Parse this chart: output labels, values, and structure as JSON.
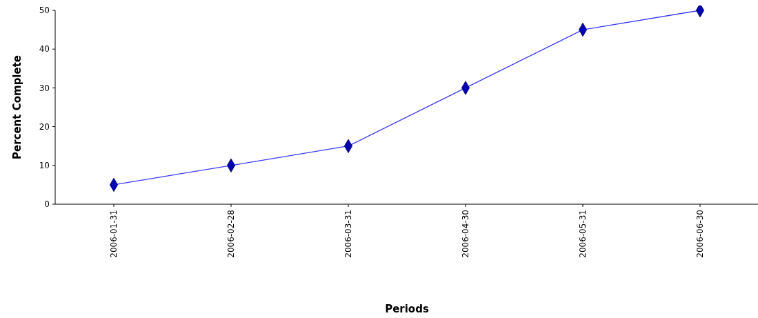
{
  "chart_data": {
    "type": "line",
    "xlabel": "Periods",
    "ylabel": "Percent Complete",
    "categories": [
      "2006-01-31",
      "2006-02-28",
      "2006-03-31",
      "2006-04-30",
      "2006-05-31",
      "2006-06-30"
    ],
    "series": [
      {
        "color": "#3a3aff",
        "values": [
          5,
          10,
          15,
          30,
          45,
          50
        ]
      }
    ],
    "ylim": [
      0,
      50
    ],
    "yticks": [
      0,
      10,
      20,
      30,
      40,
      50
    ],
    "marker": "diamond",
    "line_style": "solid"
  }
}
